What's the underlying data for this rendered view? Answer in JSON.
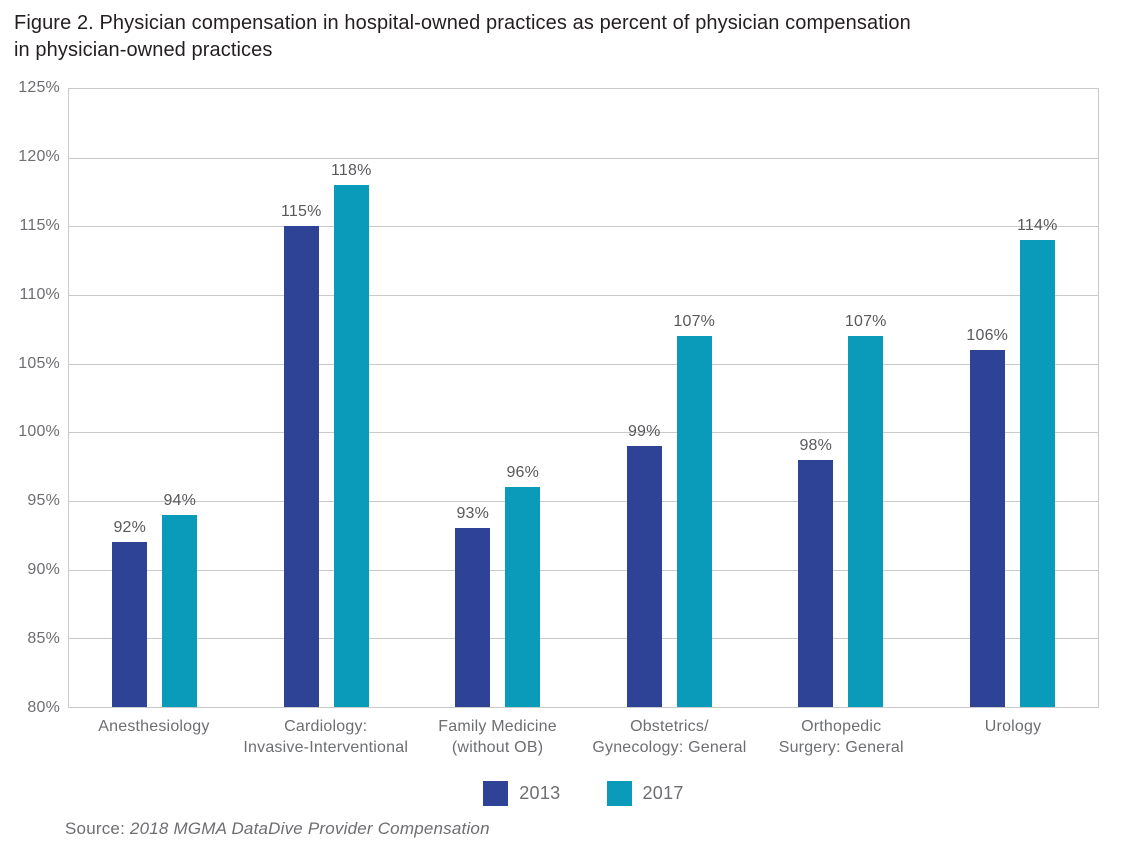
{
  "figure": {
    "title": "Figure 2. Physician compensation in hospital-owned practices as percent of physician compensation\nin physician-owned practices",
    "source_prefix": "Source: ",
    "source_citation": "2018 MGMA DataDive Provider Compensation"
  },
  "colors": {
    "series_2013": "#2e4296",
    "series_2017": "#0b9bba",
    "gridline": "#c9caca",
    "axis_text": "#6d6e71",
    "value_label_text": "#58595b",
    "title_text": "#231f20"
  },
  "chart_data": {
    "type": "bar",
    "title": "Figure 2. Physician compensation in hospital-owned practices as percent of physician compensation in physician-owned practices",
    "categories": [
      "Anesthesiology",
      "Cardiology:\nInvasive-Interventional",
      "Family Medicine\n(without OB)",
      "Obstetrics/\nGynecology: General",
      "Orthopedic\nSurgery: General",
      "Urology"
    ],
    "series": [
      {
        "name": "2013",
        "color": "#2e4296",
        "values": [
          92,
          115,
          93,
          99,
          98,
          106
        ]
      },
      {
        "name": "2017",
        "color": "#0b9bba",
        "values": [
          94,
          118,
          96,
          107,
          107,
          114
        ]
      }
    ],
    "value_label_suffix": "%",
    "xlabel": "",
    "ylabel": "",
    "ylim": [
      80,
      125
    ],
    "ytick_step": 5,
    "ytick_labels": [
      "125%",
      "120%",
      "115%",
      "110%",
      "105%",
      "100%",
      "95%",
      "90%",
      "85%",
      "80%"
    ],
    "grid": true,
    "legend_position": "bottom"
  }
}
